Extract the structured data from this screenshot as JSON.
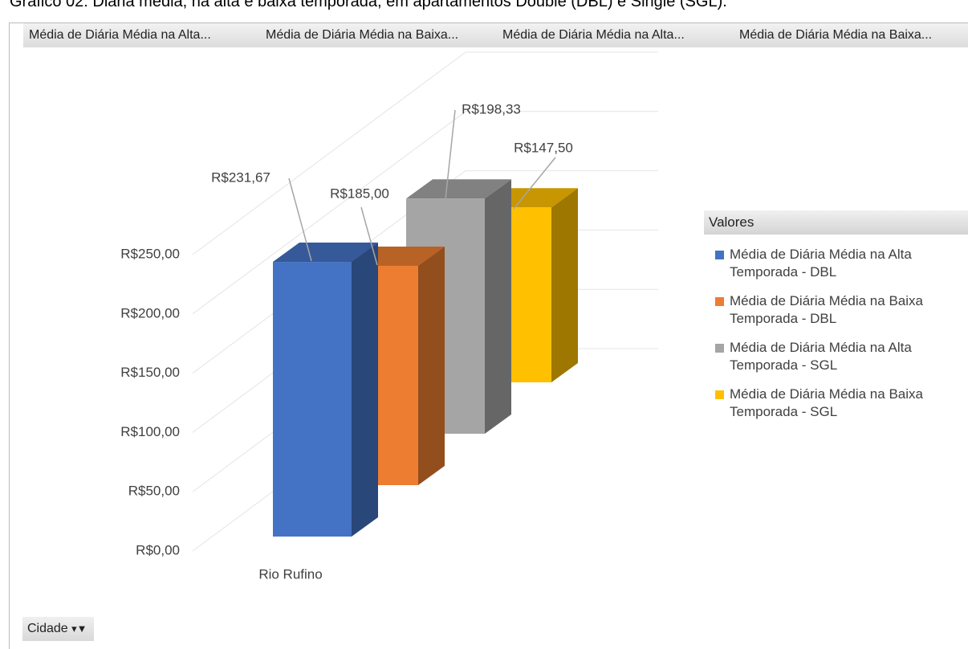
{
  "chart_data": {
    "type": "bar",
    "title": "Gráfico 02: Diária média, na alta e baixa temporada, em apartamentos Double (DBL) e Single (SGL).",
    "field_buttons": [
      "Média de Diária Média na Alta...",
      "Média de Diária Média na Baixa...",
      "Média de Diária Média na Alta...",
      "Média de Diária Média na Baixa..."
    ],
    "filter_button": "Cidade",
    "legend_title": "Valores",
    "categories": [
      "Rio Rufino"
    ],
    "series": [
      {
        "name": "Média de Diária Média na Alta Temporada - DBL",
        "color": "#4472c4",
        "values": [
          231.67
        ],
        "value_labels": [
          "R$231,67"
        ]
      },
      {
        "name": "Média de Diária Média na Baixa Temporada - DBL",
        "color": "#ed7d31",
        "values": [
          185.0
        ],
        "value_labels": [
          "R$185,00"
        ]
      },
      {
        "name": "Média de Diária Média na Alta Temporada - SGL",
        "color": "#a5a5a5",
        "values": [
          198.33
        ],
        "value_labels": [
          "R$198,33"
        ]
      },
      {
        "name": "Média de Diária Média na Baixa Temporada - SGL",
        "color": "#ffc000",
        "values": [
          147.5
        ],
        "value_labels": [
          "R$147,50"
        ]
      }
    ],
    "ylim": [
      0,
      250
    ],
    "yticks": [
      {
        "value": 0,
        "label": "R$0,00"
      },
      {
        "value": 50,
        "label": "R$50,00"
      },
      {
        "value": 100,
        "label": "R$100,00"
      },
      {
        "value": 150,
        "label": "R$150,00"
      },
      {
        "value": 200,
        "label": "R$200,00"
      },
      {
        "value": 250,
        "label": "R$250,00"
      }
    ],
    "grid": true
  }
}
